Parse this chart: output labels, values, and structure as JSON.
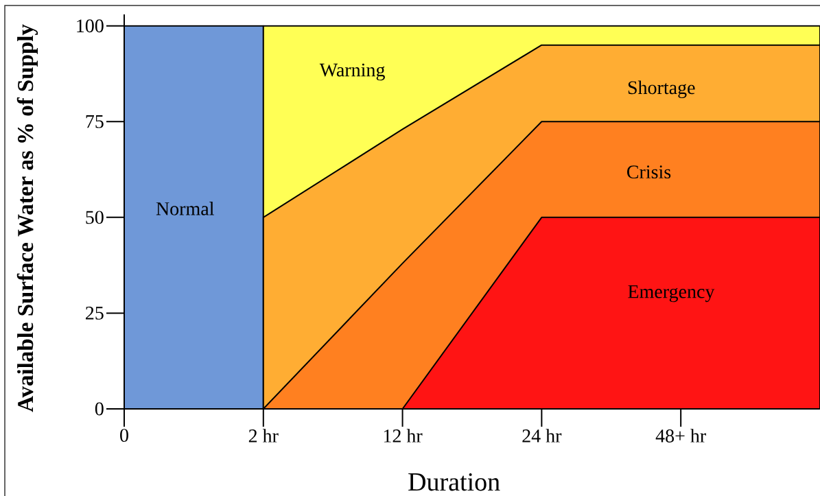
{
  "chart_data": {
    "type": "area",
    "xlabel": "Duration",
    "ylabel": "Available Surface Water as % of Supply",
    "categories": [
      "0",
      "2 hr",
      "12 hr",
      "24 hr",
      "48+ hr",
      null
    ],
    "ylim": [
      0,
      103
    ],
    "yticks": [
      0,
      25,
      50,
      75,
      100
    ],
    "series": [
      {
        "name": "Normal",
        "color": "#6f98d8",
        "values": [
          100,
          100,
          null,
          null,
          null,
          null
        ]
      },
      {
        "name": "Warning",
        "color": "#ffff55",
        "values": [
          null,
          100,
          100,
          100,
          100,
          100
        ]
      },
      {
        "name": "Shortage",
        "color": "#ffad33",
        "values": [
          null,
          50,
          73,
          95,
          95,
          95
        ]
      },
      {
        "name": "Crisis",
        "color": "#ff8020",
        "values": [
          null,
          0,
          38,
          75,
          75,
          75
        ]
      },
      {
        "name": "Emergency",
        "color": "#ff1414",
        "values": [
          null,
          null,
          0,
          50,
          50,
          50
        ]
      }
    ]
  }
}
